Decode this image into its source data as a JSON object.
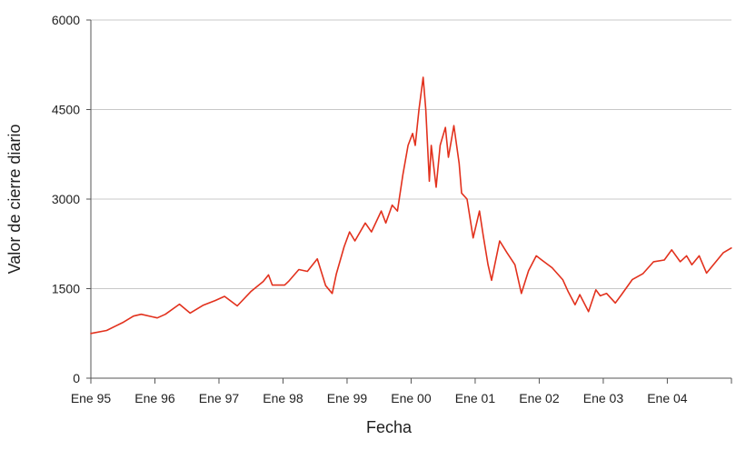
{
  "chart_data": {
    "type": "line",
    "title": "",
    "xlabel": "Fecha",
    "ylabel": "Valor de cierre diario",
    "ylim": [
      0,
      6000
    ],
    "y_ticks": [
      "0",
      "1500",
      "3000",
      "4500",
      "6000"
    ],
    "x_ticks": [
      "Ene 95",
      "Ene 96",
      "Ene 97",
      "Ene 98",
      "Ene 99",
      "Ene 00",
      "Ene 01",
      "Ene 02",
      "Ene 03",
      "Ene 04"
    ],
    "xlim": [
      "1995-01-01",
      "2005-01-01"
    ],
    "grid": {
      "horizontal": true,
      "vertical": false
    },
    "colors": {
      "line": "#e2311d",
      "grid": "#c8c8c8",
      "axis": "#555555"
    },
    "series": [
      {
        "name": "",
        "points": [
          [
            "1995-01-01",
            750
          ],
          [
            "1995-04-01",
            800
          ],
          [
            "1995-07-01",
            930
          ],
          [
            "1995-09-01",
            1040
          ],
          [
            "1995-10-15",
            1070
          ],
          [
            "1995-12-15",
            1030
          ],
          [
            "1996-01-15",
            1010
          ],
          [
            "1996-03-01",
            1070
          ],
          [
            "1996-05-20",
            1240
          ],
          [
            "1996-07-20",
            1090
          ],
          [
            "1996-10-01",
            1220
          ],
          [
            "1996-12-10",
            1300
          ],
          [
            "1997-02-01",
            1370
          ],
          [
            "1997-04-15",
            1210
          ],
          [
            "1997-07-01",
            1450
          ],
          [
            "1997-09-10",
            1620
          ],
          [
            "1997-10-10",
            1730
          ],
          [
            "1997-11-01",
            1560
          ],
          [
            "1998-01-10",
            1560
          ],
          [
            "1998-02-01",
            1620
          ],
          [
            "1998-04-01",
            1820
          ],
          [
            "1998-05-20",
            1790
          ],
          [
            "1998-07-15",
            2000
          ],
          [
            "1998-09-01",
            1550
          ],
          [
            "1998-10-08",
            1420
          ],
          [
            "1998-11-01",
            1750
          ],
          [
            "1998-12-15",
            2200
          ],
          [
            "1999-01-15",
            2450
          ],
          [
            "1999-02-15",
            2300
          ],
          [
            "1999-04-15",
            2600
          ],
          [
            "1999-05-20",
            2450
          ],
          [
            "1999-07-15",
            2800
          ],
          [
            "1999-08-10",
            2600
          ],
          [
            "1999-09-15",
            2900
          ],
          [
            "1999-10-15",
            2800
          ],
          [
            "1999-11-15",
            3400
          ],
          [
            "1999-12-15",
            3900
          ],
          [
            "2000-01-10",
            4100
          ],
          [
            "2000-01-25",
            3900
          ],
          [
            "2000-02-15",
            4500
          ],
          [
            "2000-03-10",
            5040
          ],
          [
            "2000-03-25",
            4500
          ],
          [
            "2000-04-14",
            3300
          ],
          [
            "2000-04-25",
            3900
          ],
          [
            "2000-05-23",
            3200
          ],
          [
            "2000-06-15",
            3900
          ],
          [
            "2000-07-15",
            4200
          ],
          [
            "2000-08-01",
            3700
          ],
          [
            "2000-09-01",
            4230
          ],
          [
            "2000-10-01",
            3600
          ],
          [
            "2000-10-15",
            3100
          ],
          [
            "2000-11-15",
            3000
          ],
          [
            "2000-12-20",
            2350
          ],
          [
            "2001-01-25",
            2800
          ],
          [
            "2001-02-15",
            2400
          ],
          [
            "2001-03-15",
            1900
          ],
          [
            "2001-04-04",
            1640
          ],
          [
            "2001-05-20",
            2300
          ],
          [
            "2001-07-01",
            2100
          ],
          [
            "2001-08-15",
            1900
          ],
          [
            "2001-09-21",
            1420
          ],
          [
            "2001-11-01",
            1800
          ],
          [
            "2001-12-15",
            2050
          ],
          [
            "2002-01-15",
            1980
          ],
          [
            "2002-03-15",
            1850
          ],
          [
            "2002-05-15",
            1650
          ],
          [
            "2002-06-15",
            1450
          ],
          [
            "2002-07-24",
            1230
          ],
          [
            "2002-08-20",
            1400
          ],
          [
            "2002-10-09",
            1115
          ],
          [
            "2002-11-20",
            1480
          ],
          [
            "2002-12-15",
            1380
          ],
          [
            "2003-01-20",
            1420
          ],
          [
            "2003-03-11",
            1260
          ],
          [
            "2003-04-15",
            1400
          ],
          [
            "2003-06-15",
            1650
          ],
          [
            "2003-08-15",
            1750
          ],
          [
            "2003-10-15",
            1950
          ],
          [
            "2003-12-15",
            1980
          ],
          [
            "2004-01-26",
            2150
          ],
          [
            "2004-03-15",
            1950
          ],
          [
            "2004-04-20",
            2050
          ],
          [
            "2004-05-20",
            1900
          ],
          [
            "2004-07-01",
            2050
          ],
          [
            "2004-08-12",
            1760
          ],
          [
            "2004-09-20",
            1900
          ],
          [
            "2004-11-15",
            2100
          ],
          [
            "2004-12-31",
            2180
          ]
        ]
      }
    ]
  }
}
